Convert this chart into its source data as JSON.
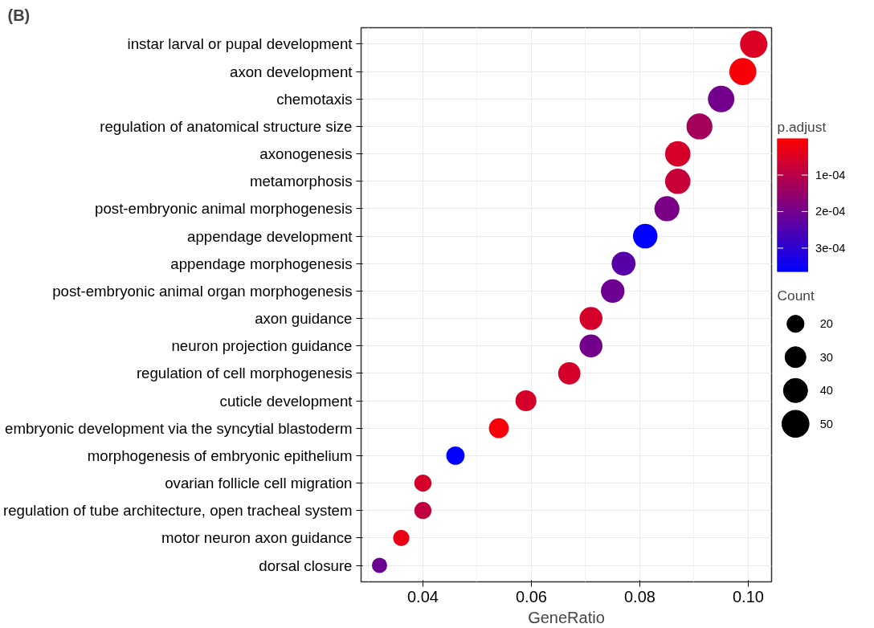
{
  "chart_data": {
    "type": "bubble",
    "annotations": [
      "(B)"
    ],
    "xlabel": "GeneRatio",
    "legend_title": "Count",
    "clabel": "p.adjust",
    "categories": [
      "instar larval or pupal development",
      "axon development",
      "chemotaxis",
      "regulation of anatomical structure size",
      "axonogenesis",
      "metamorphosis",
      "post-embryonic animal morphogenesis",
      "appendage development",
      "appendage morphogenesis",
      "post-embryonic animal organ morphogenesis",
      "axon guidance",
      "neuron projection guidance",
      "regulation of cell morphogenesis",
      "cuticle development",
      "embryonic development via the syncytial blastoderm",
      "morphogenesis of embryonic epithelium",
      "ovarian follicle cell migration",
      "regulation of tube architecture, open tracheal system",
      "motor neuron axon guidance",
      "dorsal closure"
    ],
    "values": [
      0.101,
      0.099,
      0.095,
      0.091,
      0.087,
      0.087,
      0.085,
      0.081,
      0.077,
      0.075,
      0.071,
      0.071,
      0.067,
      0.059,
      0.054,
      0.046,
      0.04,
      0.04,
      0.036,
      0.032
    ],
    "sizes": [
      51,
      50,
      48,
      46,
      44,
      44,
      43,
      41,
      39,
      38,
      36,
      36,
      34,
      30,
      27,
      23,
      20,
      20,
      18,
      16
    ],
    "cvalues": [
      5e-05,
      1e-05,
      0.0002,
      0.00013,
      6e-05,
      8e-05,
      0.00019,
      0.000365,
      0.00024,
      0.00021,
      6e-05,
      0.0002,
      6e-05,
      6e-05,
      1e-05,
      0.00036,
      6e-05,
      9e-05,
      3e-05,
      0.00021
    ],
    "size_legend": [
      20,
      30,
      40,
      50
    ],
    "clim": [
      0.0,
      0.000365
    ],
    "cticks": [
      {
        "value": 0.0001,
        "label": "1e-04"
      },
      {
        "value": 0.0002,
        "label": "2e-04"
      },
      {
        "value": 0.0003,
        "label": "3e-04"
      }
    ],
    "orientation": "horizontal",
    "xlim": [
      0.0286,
      0.1043
    ],
    "xticks": [
      {
        "value": 0.04,
        "label": "0.04"
      },
      {
        "value": 0.06,
        "label": "0.06"
      },
      {
        "value": 0.08,
        "label": "0.08"
      },
      {
        "value": 0.1,
        "label": "0.10"
      }
    ],
    "grid": true
  }
}
